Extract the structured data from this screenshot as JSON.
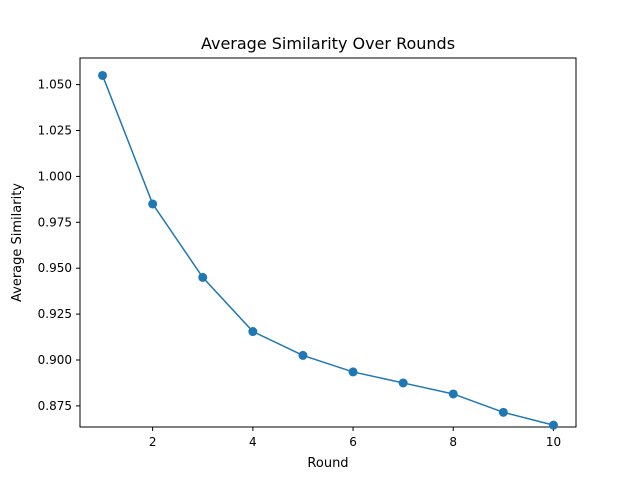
{
  "chart_data": {
    "type": "line",
    "title": "Average Similarity Over Rounds",
    "xlabel": "Round",
    "ylabel": "Average Similarity",
    "x": [
      1,
      2,
      3,
      4,
      5,
      6,
      7,
      8,
      9,
      10
    ],
    "series": [
      {
        "values": [
          1.055,
          0.985,
          0.945,
          0.9155,
          0.9025,
          0.8935,
          0.8875,
          0.8815,
          0.8715,
          0.8645
        ],
        "color": "#1f77b4",
        "marker": "circle"
      }
    ],
    "xlim": [
      0.55,
      10.45
    ],
    "ylim": [
      0.8635,
      1.0645
    ],
    "xticks": [
      2,
      4,
      6,
      8,
      10
    ],
    "yticks": [
      0.875,
      0.9,
      0.925,
      0.95,
      0.975,
      1.0,
      1.025,
      1.05
    ],
    "xtick_labels": [
      "2",
      "4",
      "6",
      "8",
      "10"
    ],
    "ytick_labels": [
      "0.875",
      "0.900",
      "0.925",
      "0.950",
      "0.975",
      "1.000",
      "1.025",
      "1.050"
    ],
    "grid": false,
    "legend": "none"
  }
}
